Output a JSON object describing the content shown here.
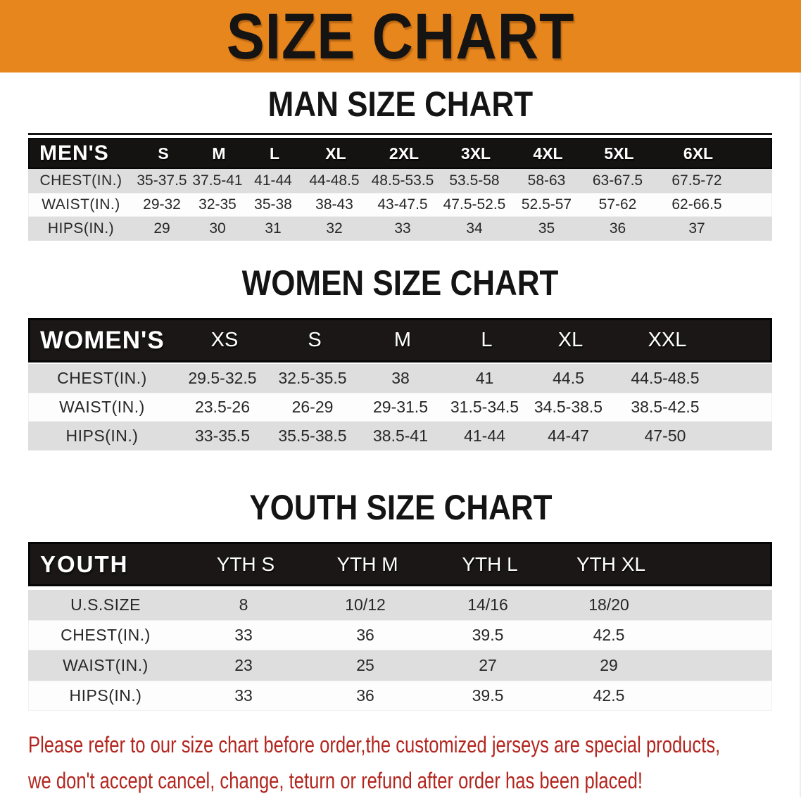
{
  "banner": {
    "title": "SIZE CHART",
    "bg_color": "#E8861E",
    "text_color": "#161412"
  },
  "charts": [
    {
      "id": "men",
      "heading": "MAN SIZE CHART",
      "header_label": "MEN'S",
      "columns": [
        "S",
        "M",
        "L",
        "XL",
        "2XL",
        "3XL",
        "4XL",
        "5XL",
        "6XL"
      ],
      "rows": [
        {
          "label": "CHEST(IN.)",
          "values": [
            "35-37.5",
            "37.5-41",
            "41-44",
            "44-48.5",
            "48.5-53.5",
            "53.5-58",
            "58-63",
            "63-67.5",
            "67.5-72"
          ]
        },
        {
          "label": "WAIST(IN.)",
          "values": [
            "29-32",
            "32-35",
            "35-38",
            "38-43",
            "43-47.5",
            "47.5-52.5",
            "52.5-57",
            "57-62",
            "62-66.5"
          ]
        },
        {
          "label": "HIPS(IN.)",
          "values": [
            "29",
            "30",
            "31",
            "32",
            "33",
            "34",
            "35",
            "36",
            "37"
          ]
        }
      ]
    },
    {
      "id": "women",
      "heading": "WOMEN SIZE CHART",
      "header_label": "WOMEN'S",
      "columns": [
        "XS",
        "S",
        "M",
        "L",
        "XL",
        "XXL"
      ],
      "rows": [
        {
          "label": "CHEST(IN.)",
          "values": [
            "29.5-32.5",
            "32.5-35.5",
            "38",
            "41",
            "44.5",
            "44.5-48.5"
          ]
        },
        {
          "label": "WAIST(IN.)",
          "values": [
            "23.5-26",
            "26-29",
            "29-31.5",
            "31.5-34.5",
            "34.5-38.5",
            "38.5-42.5"
          ]
        },
        {
          "label": "HIPS(IN.)",
          "values": [
            "33-35.5",
            "35.5-38.5",
            "38.5-41",
            "41-44",
            "44-47",
            "47-50"
          ]
        }
      ]
    },
    {
      "id": "youth",
      "heading": "YOUTH SIZE CHART",
      "header_label": "YOUTH",
      "columns": [
        "YTH S",
        "YTH M",
        "YTH L",
        "YTH XL"
      ],
      "rows": [
        {
          "label": "U.S.SIZE",
          "values": [
            "8",
            "10/12",
            "14/16",
            "18/20"
          ]
        },
        {
          "label": "CHEST(IN.)",
          "values": [
            "33",
            "36",
            "39.5",
            "42.5"
          ]
        },
        {
          "label": "WAIST(IN.)",
          "values": [
            "23",
            "25",
            "27",
            "29"
          ]
        },
        {
          "label": "HIPS(IN.)",
          "values": [
            "33",
            "36",
            "39.5",
            "42.5"
          ]
        }
      ]
    }
  ],
  "footer_note": {
    "line1": "Please refer to our size chart before order,the customized jerseys are special products,",
    "line2": "we don't accept cancel, change, teturn or refund after order has been placed!",
    "color": "#B3261F"
  }
}
